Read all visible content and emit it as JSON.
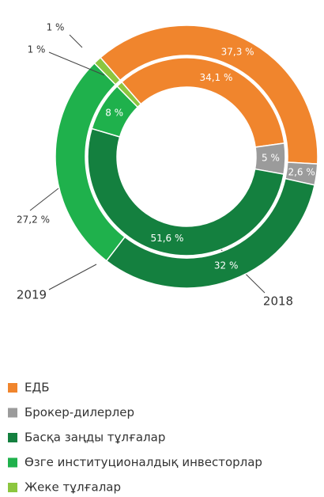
{
  "chart_data": {
    "type": "donut",
    "categories": [
      "ЕДБ",
      "Брокер-дилерлер",
      "Басқа заңды тұлғалар",
      "Өзге институционалдық инвесторлар",
      "Жеке тұлғалар"
    ],
    "colors": [
      "#f0852d",
      "#9b9b9b",
      "#14803f",
      "#1fb14c",
      "#8cc63f"
    ],
    "series": [
      {
        "name": "2019",
        "values": [
          37.3,
          2.6,
          32,
          27.2,
          1
        ],
        "value_labels": [
          "37,3 %",
          "2,6 %",
          "32 %",
          "27,2 %",
          "1 %"
        ]
      },
      {
        "name": "2018",
        "values": [
          34.1,
          5,
          51.6,
          8,
          1
        ],
        "value_labels": [
          "34,1 %",
          "5 %",
          "51,6 %",
          "8 %",
          "1 %"
        ]
      }
    ],
    "legend": "bottom"
  }
}
